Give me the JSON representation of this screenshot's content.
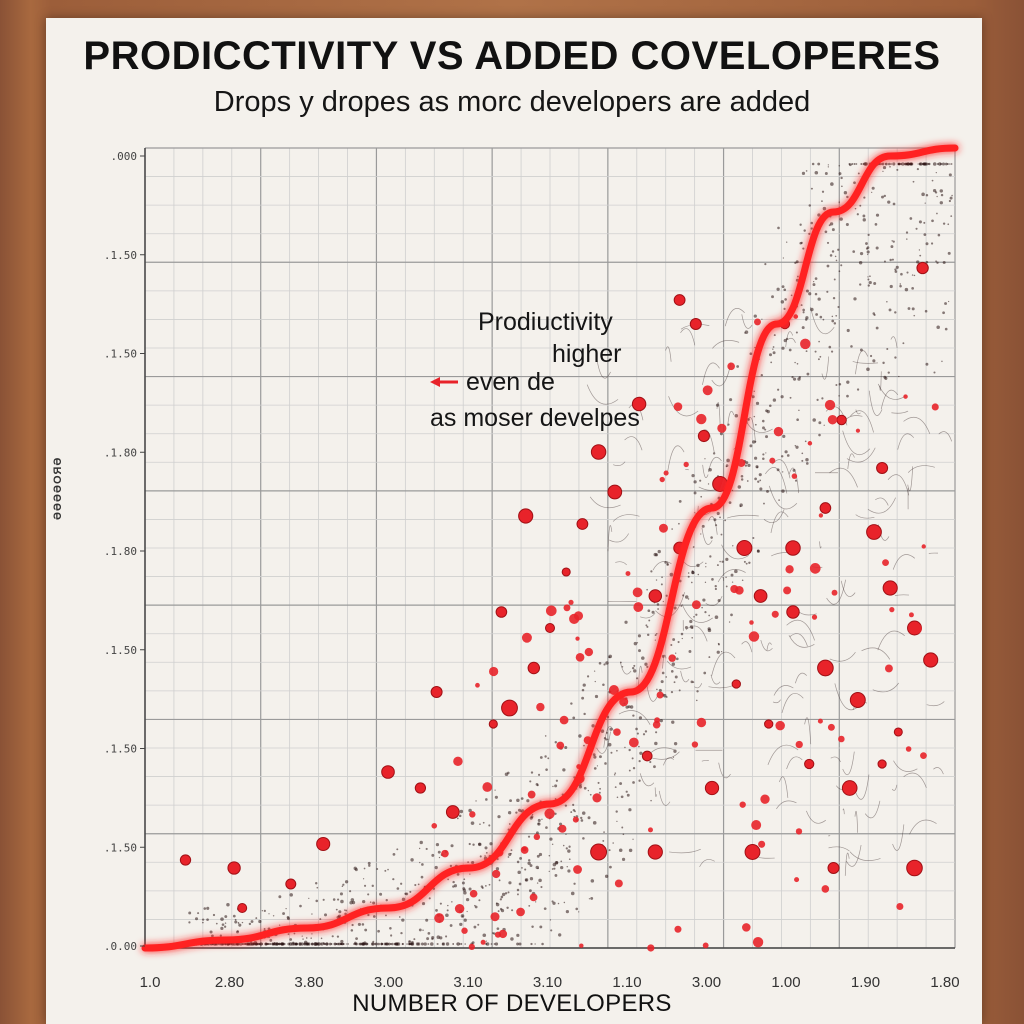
{
  "chart_data": {
    "type": "scatter",
    "title": "PRODICCTIVITY VS ADDED COVELOPERES",
    "subtitle": "Drops y dropes as morc developers are added",
    "xlabel": "NUMBER OF DEVELOPERS",
    "ylabel": "ƏƏƏƏOЯƏ",
    "x_tick_labels": [
      "1.0",
      "2.80",
      "3.80",
      "3.00",
      "3.10",
      "3.10",
      "1.10",
      "3.00",
      "1.00",
      "1.90",
      "1.80"
    ],
    "y_tick_labels": [
      ".000",
      ".1.50",
      ".1.50",
      ".1.80",
      ".1.80",
      ".1.50",
      ".1.50",
      ".1.50",
      ".0.00"
    ],
    "grid": true,
    "colors": {
      "curve": "#ff2020",
      "points": "#e8232a",
      "noise": "#2a1414"
    },
    "annotations": [
      "Prodiuctivity",
      "higher",
      "even de",
      "as moser develpes"
    ],
    "curve": [
      [
        0.0,
        0.0
      ],
      [
        0.1,
        0.01
      ],
      [
        0.2,
        0.025
      ],
      [
        0.3,
        0.05
      ],
      [
        0.4,
        0.1
      ],
      [
        0.5,
        0.18
      ],
      [
        0.6,
        0.32
      ],
      [
        0.7,
        0.55
      ],
      [
        0.78,
        0.78
      ],
      [
        0.85,
        0.92
      ],
      [
        0.92,
        0.99
      ],
      [
        1.0,
        1.0
      ]
    ],
    "points": [
      [
        0.05,
        0.11
      ],
      [
        0.11,
        0.1
      ],
      [
        0.22,
        0.13
      ],
      [
        0.12,
        0.05
      ],
      [
        0.18,
        0.08
      ],
      [
        0.3,
        0.22
      ],
      [
        0.34,
        0.2
      ],
      [
        0.38,
        0.17
      ],
      [
        0.43,
        0.28
      ],
      [
        0.45,
        0.3
      ],
      [
        0.36,
        0.32
      ],
      [
        0.48,
        0.35
      ],
      [
        0.5,
        0.4
      ],
      [
        0.44,
        0.42
      ],
      [
        0.52,
        0.47
      ],
      [
        0.54,
        0.53
      ],
      [
        0.47,
        0.54
      ],
      [
        0.58,
        0.57
      ],
      [
        0.56,
        0.62
      ],
      [
        0.61,
        0.68
      ],
      [
        0.66,
        0.81
      ],
      [
        0.68,
        0.78
      ],
      [
        0.63,
        0.44
      ],
      [
        0.69,
        0.64
      ],
      [
        0.71,
        0.58
      ],
      [
        0.74,
        0.5
      ],
      [
        0.76,
        0.44
      ],
      [
        0.8,
        0.42
      ],
      [
        0.84,
        0.35
      ],
      [
        0.88,
        0.31
      ],
      [
        0.91,
        0.23
      ],
      [
        0.93,
        0.27
      ],
      [
        0.87,
        0.2
      ],
      [
        0.82,
        0.23
      ],
      [
        0.77,
        0.28
      ],
      [
        0.73,
        0.33
      ],
      [
        0.7,
        0.2
      ],
      [
        0.75,
        0.12
      ],
      [
        0.85,
        0.1
      ],
      [
        0.95,
        0.1
      ],
      [
        0.92,
        0.45
      ],
      [
        0.95,
        0.4
      ],
      [
        0.97,
        0.36
      ],
      [
        0.91,
        0.6
      ],
      [
        0.86,
        0.66
      ],
      [
        0.8,
        0.5
      ],
      [
        0.62,
        0.24
      ],
      [
        0.56,
        0.12
      ],
      [
        0.63,
        0.12
      ],
      [
        0.9,
        0.52
      ],
      [
        0.84,
        0.55
      ],
      [
        0.96,
        0.85
      ],
      [
        0.79,
        0.78
      ],
      [
        0.66,
        0.5
      ]
    ]
  }
}
